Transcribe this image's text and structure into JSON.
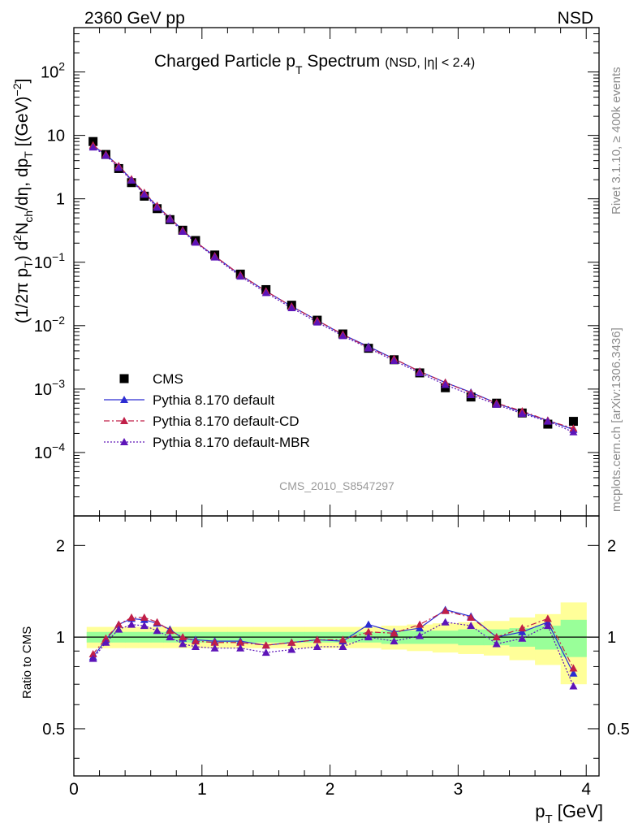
{
  "header": {
    "left": "2360 GeV pp",
    "right": "NSD"
  },
  "side_labels": {
    "rivet": "Rivet 3.1.10, ≥ 400k events",
    "mcplots": "mcplots.cern.ch [arXiv:1306.3436]"
  },
  "analysis_id": "CMS_2010_S8547297",
  "chart_data": [
    {
      "type": "scatter",
      "title": "Charged Particle p_T Spectrum",
      "title_main": "Charged Particle p",
      "title_sub": "T",
      "title_after": " Spectrum",
      "title_note": "(NSD, |η| < 2.4)",
      "yscale": "log",
      "xlim": [
        0,
        4.1
      ],
      "ylim": [
        1e-05,
        500
      ],
      "ylabel": "(1/2π p_T) d²N_ch/dη, dp_T [(GeV)⁻²]",
      "y_ticks": [
        {
          "value": 0.0001,
          "base": "10",
          "exp": "−4"
        },
        {
          "value": 0.001,
          "base": "10",
          "exp": "−3"
        },
        {
          "value": 0.01,
          "base": "10",
          "exp": "−2"
        },
        {
          "value": 0.1,
          "base": "10",
          "exp": "−1"
        },
        {
          "value": 1,
          "base": "1",
          "exp": ""
        },
        {
          "value": 10,
          "base": "10",
          "exp": ""
        },
        {
          "value": 100,
          "base": "10",
          "exp": "2"
        }
      ],
      "x": [
        0.15,
        0.25,
        0.35,
        0.45,
        0.55,
        0.65,
        0.75,
        0.85,
        0.95,
        1.1,
        1.3,
        1.5,
        1.7,
        1.9,
        2.1,
        2.3,
        2.5,
        2.7,
        2.9,
        3.1,
        3.3,
        3.5,
        3.7,
        3.9
      ],
      "series": [
        {
          "name": "CMS",
          "marker": "square",
          "color": "#000000",
          "values": [
            8.0,
            5.0,
            3.0,
            1.8,
            1.1,
            0.7,
            0.47,
            0.32,
            0.22,
            0.13,
            0.065,
            0.037,
            0.021,
            0.0122,
            0.0074,
            0.0044,
            0.0029,
            0.0018,
            0.00105,
            0.00075,
            0.0006,
            0.00042,
            0.00028,
            0.00031
          ]
        },
        {
          "name": "Pythia 8.170 default",
          "marker": "triangle",
          "color": "#2c2cd2",
          "line": "solid",
          "values": [
            6.8,
            5.0,
            3.3,
            2.0,
            1.22,
            0.77,
            0.5,
            0.32,
            0.21,
            0.125,
            0.063,
            0.035,
            0.0202,
            0.0121,
            0.0072,
            0.0047,
            0.003,
            0.0019,
            0.00127,
            0.00089,
            0.0006,
            0.00043,
            0.00032,
            0.00023
          ]
        },
        {
          "name": "Pythia 8.170 default-CD",
          "marker": "triangle",
          "color": "#c01f48",
          "line": "dashdot",
          "values": [
            7.0,
            5.0,
            3.3,
            2.05,
            1.25,
            0.78,
            0.49,
            0.32,
            0.21,
            0.125,
            0.063,
            0.035,
            0.0202,
            0.0121,
            0.0073,
            0.0045,
            0.003,
            0.0019,
            0.00127,
            0.00087,
            0.0006,
            0.00045,
            0.00032,
            0.00024
          ]
        },
        {
          "name": "Pythia 8.170 default-MBR",
          "marker": "triangle",
          "color": "#5d14b8",
          "line": "dotted",
          "values": [
            6.5,
            4.8,
            3.1,
            1.95,
            1.17,
            0.73,
            0.47,
            0.305,
            0.205,
            0.12,
            0.06,
            0.033,
            0.019,
            0.0113,
            0.0069,
            0.0044,
            0.0028,
            0.0018,
            0.00117,
            0.00081,
            0.00057,
            0.00041,
            0.00031,
            0.00021
          ]
        }
      ],
      "legend": [
        {
          "label": "CMS",
          "marker": "square",
          "color": "#000000",
          "line": "none"
        },
        {
          "label": "Pythia 8.170 default",
          "marker": "triangle",
          "color": "#2c2cd2",
          "line": "solid"
        },
        {
          "label": "Pythia 8.170 default-CD",
          "marker": "triangle",
          "color": "#c01f48",
          "line": "dashdot"
        },
        {
          "label": "Pythia 8.170 default-MBR",
          "marker": "triangle",
          "color": "#5d14b8",
          "line": "dotted"
        }
      ],
      "legend_position": "lower-left"
    },
    {
      "type": "line",
      "title": "Ratio to CMS",
      "ylabel": "Ratio to CMS",
      "xlabel": "p_T [GeV]",
      "xlabel_main": "p",
      "xlabel_sub": "T",
      "xlabel_unit": " [GeV]",
      "yscale": "log",
      "xlim": [
        0,
        4.1
      ],
      "ylim": [
        0.35,
        2.5
      ],
      "y_ticks": [
        {
          "value": 0.5,
          "label": "0.5"
        },
        {
          "value": 1,
          "label": "1"
        },
        {
          "value": 2,
          "label": "2"
        }
      ],
      "x_ticks": [
        {
          "value": 0,
          "label": "0"
        },
        {
          "value": 1,
          "label": "1"
        },
        {
          "value": 2,
          "label": "2"
        },
        {
          "value": 3,
          "label": "3"
        },
        {
          "value": 4,
          "label": "4"
        }
      ],
      "reference_line": 1,
      "bands": {
        "bin_edges": [
          0.1,
          0.2,
          0.3,
          0.4,
          0.5,
          0.6,
          0.7,
          0.8,
          0.9,
          1.0,
          1.2,
          1.4,
          1.6,
          1.8,
          2.0,
          2.2,
          2.4,
          2.6,
          2.8,
          3.0,
          3.2,
          3.4,
          3.6,
          3.8,
          4.0
        ],
        "inner": [
          0.04,
          0.04,
          0.04,
          0.04,
          0.04,
          0.04,
          0.04,
          0.04,
          0.04,
          0.04,
          0.04,
          0.04,
          0.04,
          0.04,
          0.04,
          0.04,
          0.05,
          0.05,
          0.05,
          0.06,
          0.06,
          0.07,
          0.09,
          0.14
        ],
        "outer": [
          0.08,
          0.08,
          0.08,
          0.08,
          0.08,
          0.08,
          0.08,
          0.08,
          0.08,
          0.08,
          0.08,
          0.08,
          0.08,
          0.08,
          0.08,
          0.08,
          0.09,
          0.1,
          0.11,
          0.12,
          0.13,
          0.16,
          0.19,
          0.3
        ]
      },
      "series": [
        {
          "name": "Pythia 8.170 default",
          "color": "#2c2cd2",
          "line": "solid",
          "values": [
            0.86,
            0.98,
            1.1,
            1.15,
            1.14,
            1.11,
            1.06,
            0.99,
            0.98,
            0.97,
            0.97,
            0.94,
            0.96,
            0.98,
            0.97,
            1.1,
            1.04,
            1.07,
            1.23,
            1.17,
            1.0,
            1.04,
            1.12,
            0.76
          ]
        },
        {
          "name": "Pythia 8.170 default-CD",
          "color": "#c01f48",
          "line": "dashdot",
          "values": [
            0.88,
            0.99,
            1.1,
            1.16,
            1.16,
            1.12,
            1.05,
            1.0,
            0.97,
            0.96,
            0.96,
            0.94,
            0.96,
            0.98,
            0.98,
            1.04,
            1.03,
            1.1,
            1.22,
            1.16,
            1.0,
            1.07,
            1.15,
            0.79
          ]
        },
        {
          "name": "Pythia 8.170 default-MBR",
          "color": "#5d14b8",
          "line": "dotted",
          "values": [
            0.85,
            0.96,
            1.06,
            1.1,
            1.09,
            1.05,
            1.0,
            0.95,
            0.93,
            0.92,
            0.92,
            0.89,
            0.91,
            0.93,
            0.93,
            1.0,
            0.97,
            1.01,
            1.12,
            1.09,
            0.95,
            0.99,
            1.09,
            0.69
          ]
        }
      ]
    }
  ]
}
